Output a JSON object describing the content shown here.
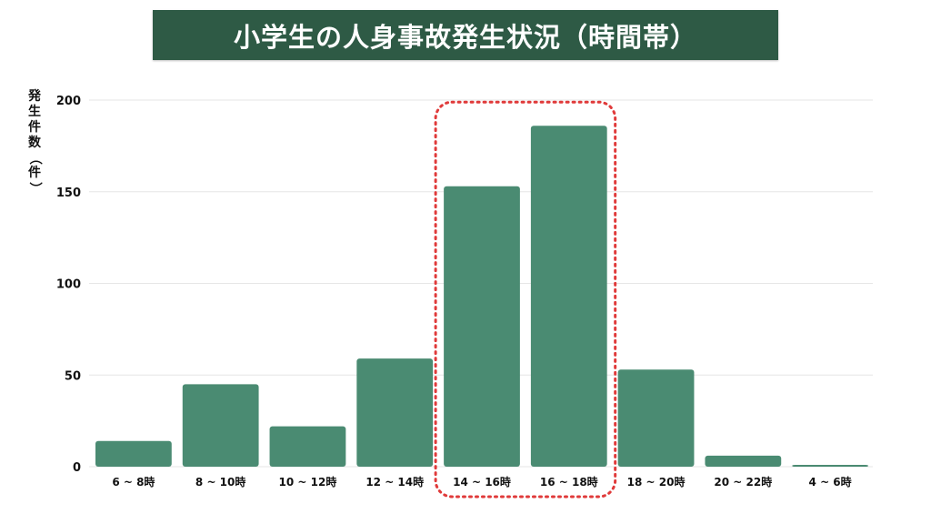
{
  "title": "小学生の人身事故発生状況（時間帯）",
  "colors": {
    "banner": "#2e5a45",
    "bar": "#4a8b72",
    "highlight": "#e03a3a",
    "grid": "#e6e6e6"
  },
  "chart_data": {
    "type": "bar",
    "title": "小学生の人身事故発生状況（時間帯）",
    "xlabel": "",
    "ylabel": "発生件数（件）",
    "ylabel_chars": [
      "発",
      "生",
      "件",
      "数",
      "（",
      "件",
      "）"
    ],
    "categories": [
      "6 ~ 8時",
      "8 ~ 10時",
      "10 ~ 12時",
      "12 ~ 14時",
      "14 ~ 16時",
      "16 ~ 18時",
      "18 ~ 20時",
      "20 ~ 22時",
      "4 ~ 6時"
    ],
    "values": [
      14,
      45,
      22,
      59,
      153,
      186,
      53,
      6,
      1
    ],
    "ylim": [
      0,
      200
    ],
    "yticks": [
      0,
      50,
      100,
      150,
      200
    ],
    "grid": true,
    "legend": "none",
    "highlight_categories": [
      "14 ~ 16時",
      "16 ~ 18時"
    ]
  }
}
